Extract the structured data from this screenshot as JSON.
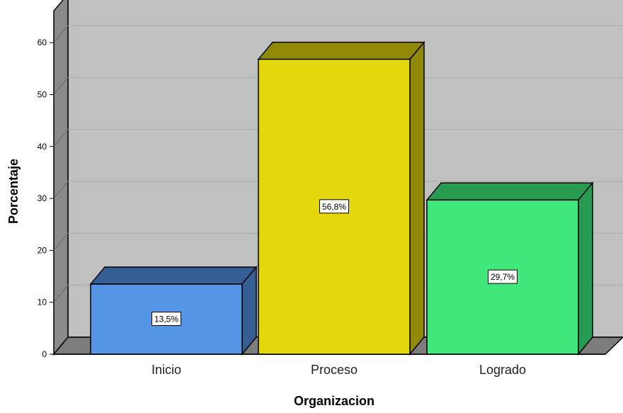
{
  "chart_data": {
    "type": "bar",
    "categories": [
      "Inicio",
      "Proceso",
      "Logrado"
    ],
    "values": [
      13.5,
      56.8,
      29.7
    ],
    "data_labels": [
      "13,5%",
      "56,8%",
      "29,7%"
    ],
    "xlabel": "Organizacion",
    "ylabel": "Porcentaje",
    "ylim": [
      0,
      60
    ],
    "yticks": [
      0,
      10,
      20,
      30,
      40,
      50,
      60
    ],
    "grid": true,
    "style": "3d",
    "colors": {
      "bars": [
        "#5495e6",
        "#e4d80c",
        "#40e87c"
      ],
      "bar_tops": [
        "#355f93",
        "#918a08",
        "#279b52"
      ],
      "wall": "#c0c0c0",
      "floor": "#7d7d7d",
      "side_wall": "#8a8a8a"
    }
  }
}
